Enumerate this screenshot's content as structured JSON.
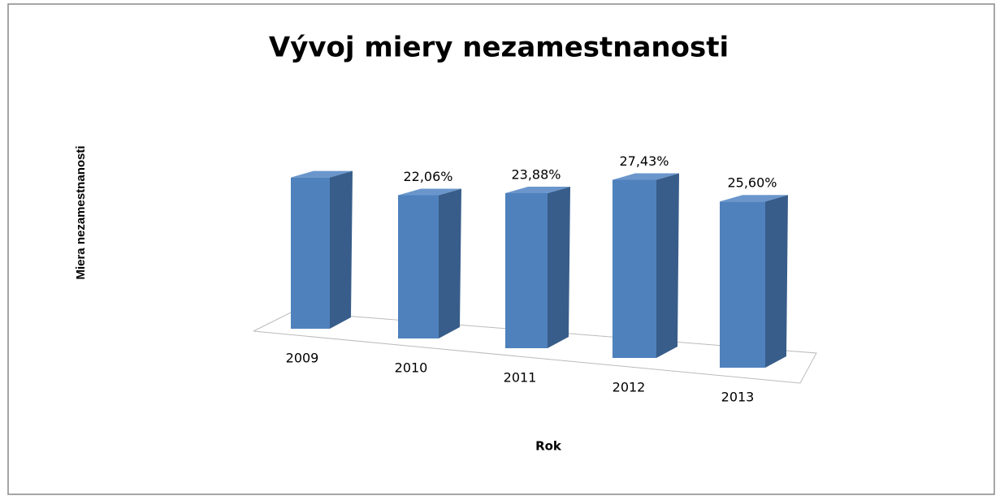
{
  "chart_data": {
    "type": "bar3d",
    "title": "Vývoj miery nezamestnanosti",
    "x_label": "Rok",
    "y_label": "Miera nezamestnanosti",
    "categories": [
      "2009",
      "2010",
      "2011",
      "2012",
      "2013"
    ],
    "values": [
      23.3,
      22.06,
      23.88,
      27.43,
      25.6
    ],
    "value_labels": [
      null,
      "22,06%",
      "23,88%",
      "27,43%",
      "25,60%"
    ],
    "color": "#4f81bd"
  }
}
